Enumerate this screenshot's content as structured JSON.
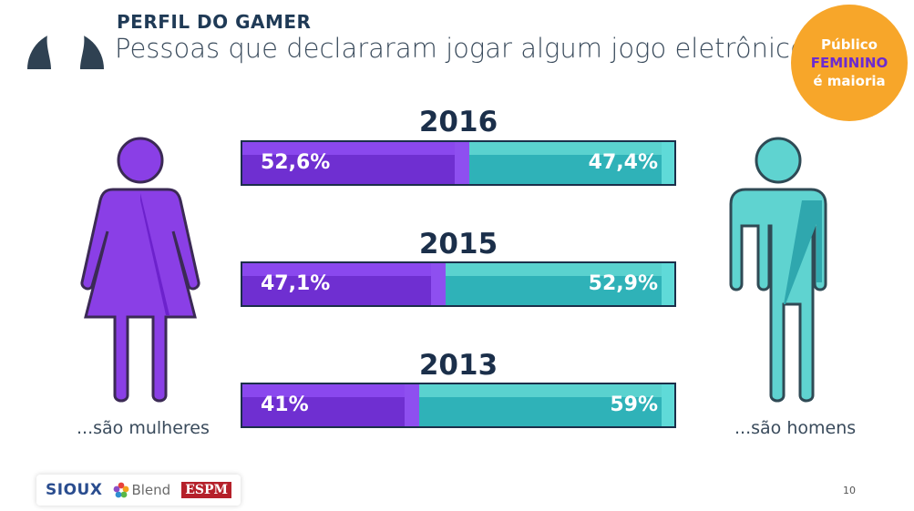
{
  "header": {
    "section_label": "PERFIL DO GAMER",
    "title": "Pessoas que declararam jogar algum jogo eletrônico"
  },
  "badge": {
    "line1": "Público",
    "line2": "FEMININO",
    "line3": "é maioria"
  },
  "captions": {
    "women": "...são mulheres",
    "men": "...são homens"
  },
  "chart_data": {
    "type": "bar",
    "orientation": "horizontal-stacked-100",
    "categories": [
      "2016",
      "2015",
      "2013"
    ],
    "series": [
      {
        "values": [
          52.6,
          47.1,
          41
        ],
        "labels": [
          "52,6%",
          "47,1%",
          "41%"
        ],
        "color": "#6f2fd1"
      },
      {
        "values": [
          47.4,
          52.9,
          59
        ],
        "labels": [
          "47,4%",
          "52,9%",
          "59%"
        ],
        "color": "#2fb2b8"
      }
    ],
    "xlim": [
      0,
      100
    ],
    "grid": false
  },
  "footer": {
    "logos": [
      "SIOUX",
      "Blend",
      "ESPM"
    ],
    "page_number": "10"
  }
}
